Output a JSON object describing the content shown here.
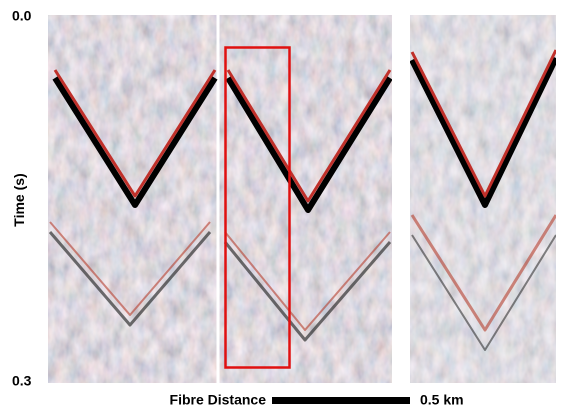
{
  "axis": {
    "label": "Time (s)",
    "ticks": [
      "0.0",
      "0.3"
    ]
  },
  "scale_bar": {
    "label": "Fibre Distance",
    "length": "0.5 km"
  }
}
